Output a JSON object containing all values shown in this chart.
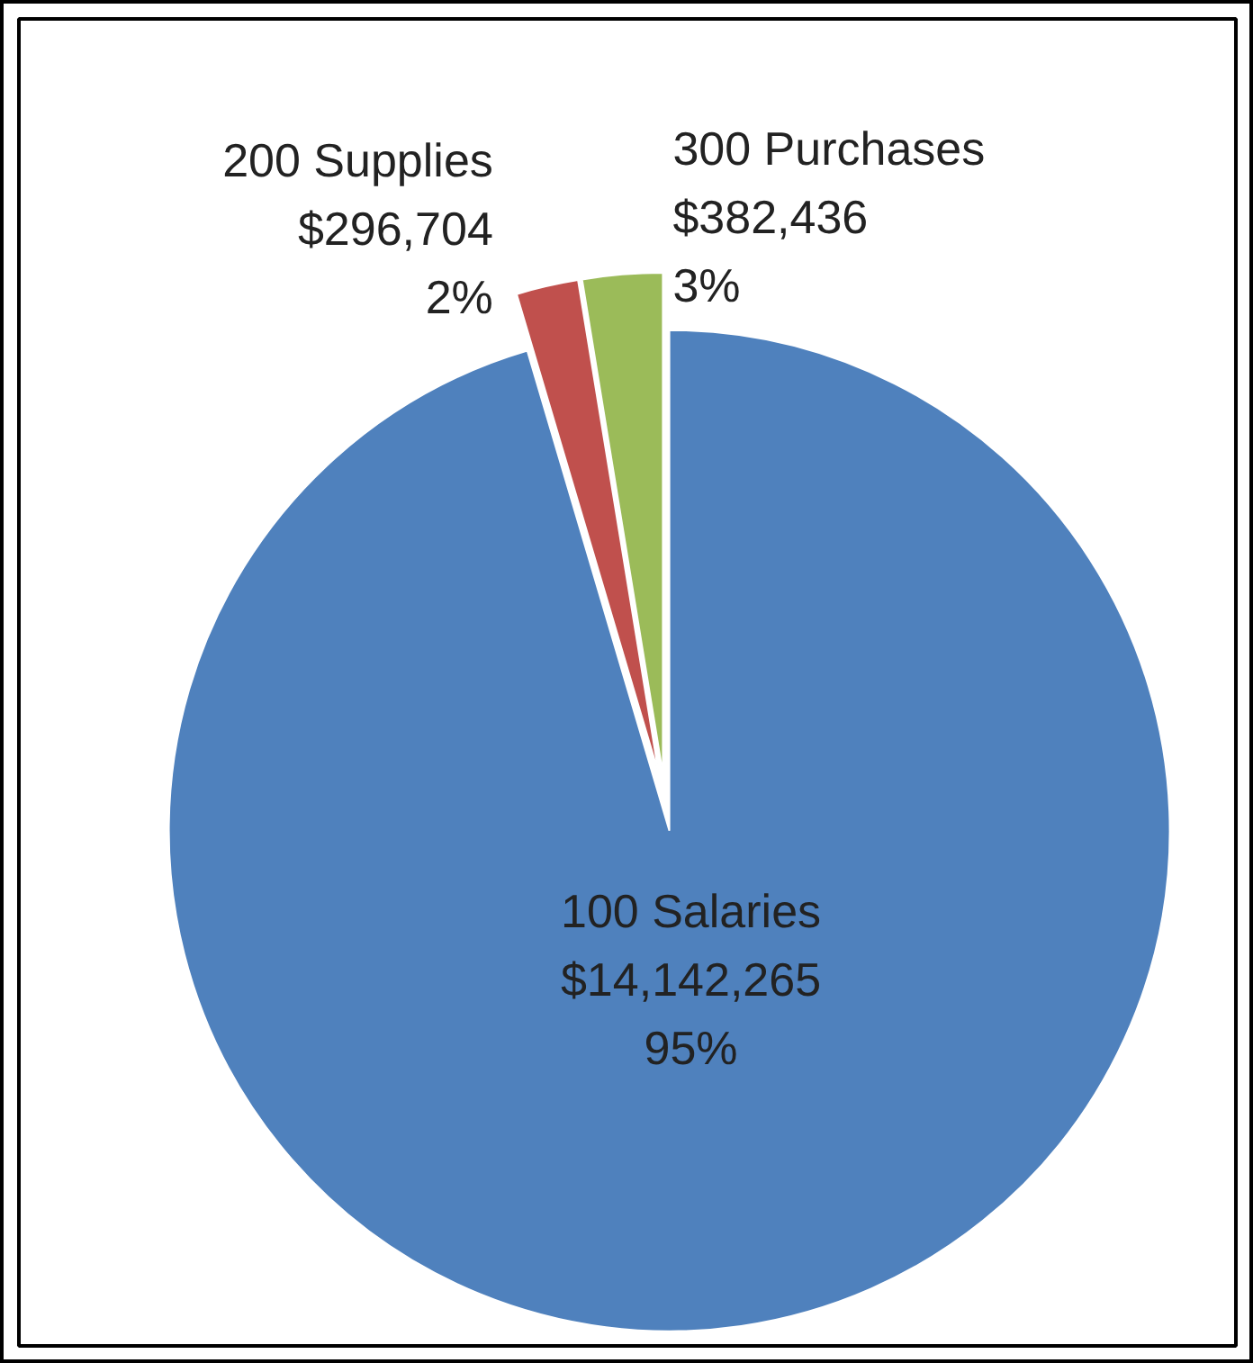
{
  "chart_data": {
    "type": "pie",
    "categories": [
      "100 Salaries",
      "200 Supplies",
      "300 Purchases"
    ],
    "values": [
      14142265,
      296704,
      382436
    ],
    "value_labels": [
      "$14,142,265\n95%",
      "$296,704\n2%",
      "$382,436\n3%"
    ],
    "colors": [
      "#4f81bd",
      "#c0504d",
      "#9bbb59"
    ]
  }
}
